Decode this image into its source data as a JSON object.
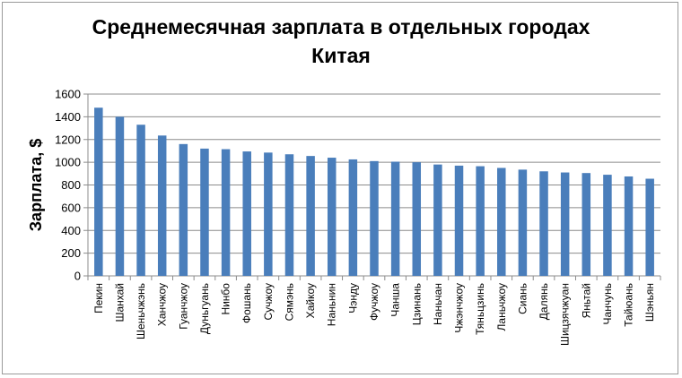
{
  "chart_data": {
    "type": "bar",
    "title_lines": [
      "Среднемесячная зарплата в отдельных городах",
      "Китая"
    ],
    "xlabel": "",
    "ylabel": "Зарплата, $",
    "ylim": [
      0,
      1600
    ],
    "yticks": [
      0,
      200,
      400,
      600,
      800,
      1000,
      1200,
      1400,
      1600
    ],
    "grid": true,
    "legend": "none",
    "bar_color": "#4a7ebb",
    "categories": [
      "Пекин",
      "Шанхай",
      "Шеньчжэнь",
      "Ханчжоу",
      "Гуанчжоу",
      "Дуньгуань",
      "Нинбо",
      "Фошань",
      "Сучжоу",
      "Сямэнь",
      "Хайкоу",
      "Наньнин",
      "Чэнду",
      "Фучжоу",
      "Чанша",
      "Цзинань",
      "Наньчан",
      "Чжэнчжоу",
      "Тяньцзинь",
      "Ланьчжоу",
      "Сиань",
      "Далянь",
      "Шицзячжуан",
      "Яньтай",
      "Чанчунь",
      "Тайюань",
      "Шэньян"
    ],
    "values": [
      1480,
      1400,
      1330,
      1235,
      1160,
      1120,
      1115,
      1095,
      1085,
      1070,
      1055,
      1040,
      1025,
      1010,
      1005,
      1000,
      980,
      970,
      965,
      950,
      935,
      920,
      910,
      905,
      890,
      875,
      855
    ]
  }
}
